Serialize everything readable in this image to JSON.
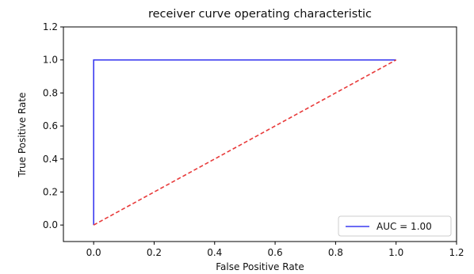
{
  "chart_data": {
    "type": "line",
    "title": "receiver curve operating characteristic",
    "xlabel": "False Positive Rate",
    "ylabel": "True Positive Rate",
    "xlim": [
      -0.1,
      1.2
    ],
    "ylim": [
      -0.1,
      1.2
    ],
    "xticks": [
      0.0,
      0.2,
      0.4,
      0.6,
      0.8,
      1.0,
      1.2
    ],
    "yticks": [
      0.0,
      0.2,
      0.4,
      0.6,
      0.8,
      1.0,
      1.2
    ],
    "tick_labels": [
      "0.0",
      "0.2",
      "0.4",
      "0.6",
      "0.8",
      "1.0",
      "1.2"
    ],
    "grid": false,
    "legend_position": "lower-right",
    "series": [
      {
        "name": "AUC = 1.00",
        "x": [
          0.0,
          0.0,
          1.0
        ],
        "y": [
          0.0,
          1.0,
          1.0
        ],
        "color": "#3a3af0",
        "style": "solid"
      },
      {
        "x": [
          0.0,
          1.0
        ],
        "y": [
          0.0,
          1.0
        ],
        "color": "#e83a3a",
        "style": "dashed"
      }
    ],
    "legend": [
      {
        "label": "AUC = 1.00",
        "color": "#3a3af0"
      }
    ]
  }
}
